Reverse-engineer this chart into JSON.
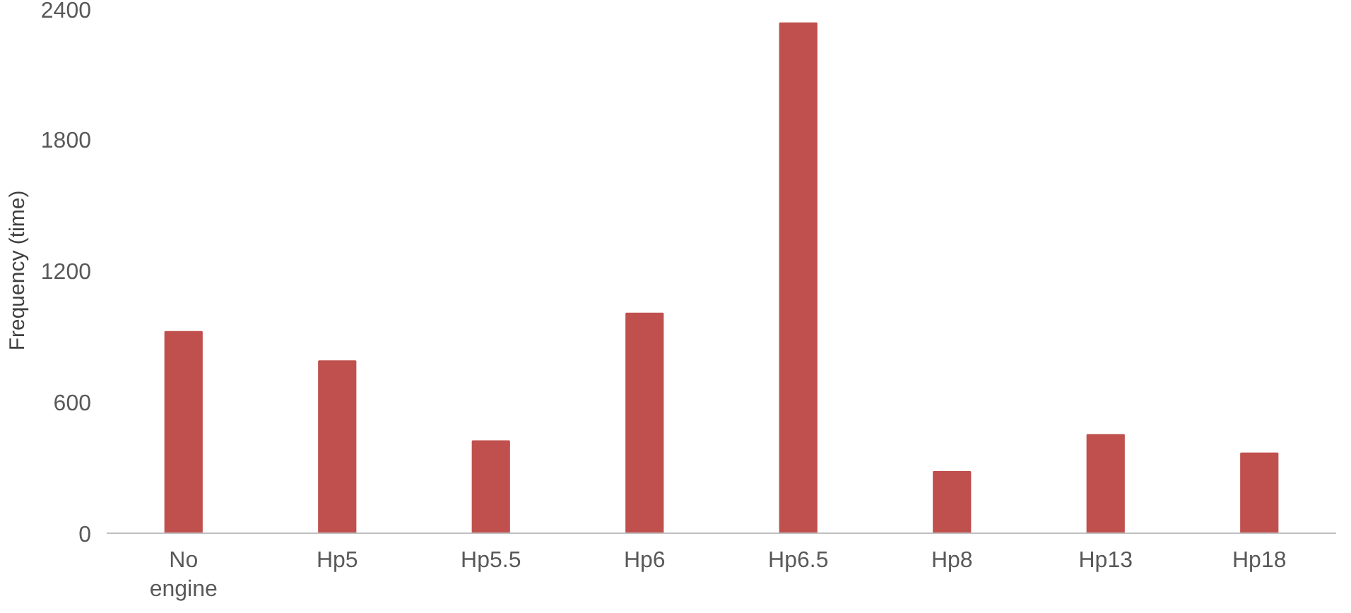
{
  "chart_data": {
    "type": "bar",
    "ylabel": "Frequency (time)",
    "categories": [
      "No engine",
      "Hp5",
      "Hp5.5",
      "Hp6",
      "Hp6.5",
      "Hp8",
      "Hp13",
      "Hp18"
    ],
    "values": [
      920,
      786,
      421,
      1004,
      2330,
      281,
      449,
      365
    ],
    "color": "#c0504d",
    "ylim": [
      0,
      2400
    ],
    "yticks": [
      0,
      600,
      1200,
      1800,
      2400
    ],
    "grid": false
  }
}
